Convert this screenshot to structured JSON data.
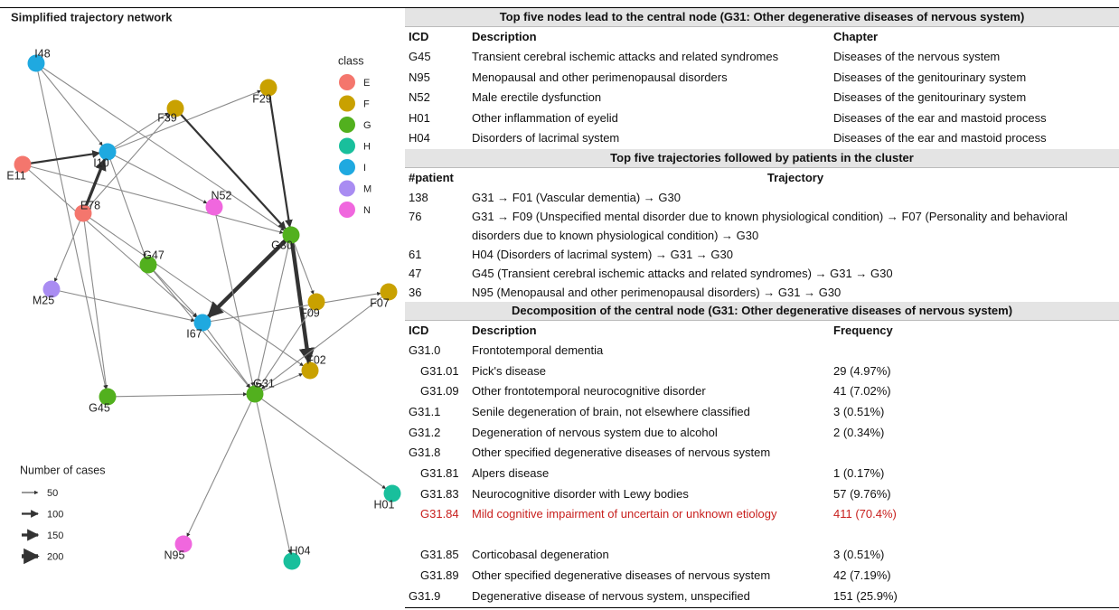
{
  "figure_title": "Simplified trajectory network",
  "network": {
    "legend_title": "class",
    "classes": [
      {
        "name": "E",
        "color": "#f4766d"
      },
      {
        "name": "F",
        "color": "#c9a100"
      },
      {
        "name": "G",
        "color": "#52b01e"
      },
      {
        "name": "H",
        "color": "#19bf9c"
      },
      {
        "name": "I",
        "color": "#1fa9e0"
      },
      {
        "name": "M",
        "color": "#a98cf2"
      },
      {
        "name": "N",
        "color": "#f067de"
      }
    ],
    "nodes": [
      {
        "label": "I48",
        "class": "I"
      },
      {
        "label": "F29",
        "class": "F"
      },
      {
        "label": "F39",
        "class": "F"
      },
      {
        "label": "E11",
        "class": "E"
      },
      {
        "label": "I10",
        "class": "I"
      },
      {
        "label": "E78",
        "class": "E"
      },
      {
        "label": "N52",
        "class": "N"
      },
      {
        "label": "G30",
        "class": "G"
      },
      {
        "label": "G47",
        "class": "G"
      },
      {
        "label": "M25",
        "class": "M"
      },
      {
        "label": "F09",
        "class": "F"
      },
      {
        "label": "F07",
        "class": "F"
      },
      {
        "label": "I67",
        "class": "I"
      },
      {
        "label": "F02",
        "class": "F"
      },
      {
        "label": "G31",
        "class": "G"
      },
      {
        "label": "G45",
        "class": "G"
      },
      {
        "label": "H01",
        "class": "H"
      },
      {
        "label": "N95",
        "class": "N"
      },
      {
        "label": "H04",
        "class": "H"
      }
    ],
    "size_legend": {
      "title": "Number of cases",
      "values": [
        50,
        100,
        150,
        200
      ]
    }
  },
  "tables": [
    {
      "title": "Top five nodes lead to the central node (G31: Other degenerative diseases of nervous system)",
      "columns": [
        "ICD",
        "Description",
        "Chapter"
      ],
      "rows": [
        {
          "cells": [
            "G45",
            "Transient cerebral ischemic attacks and related syndromes",
            "Diseases of the nervous system"
          ]
        },
        {
          "cells": [
            "N95",
            "Menopausal and other perimenopausal disorders",
            "Diseases of the genitourinary system"
          ]
        },
        {
          "cells": [
            "N52",
            "Male erectile dysfunction",
            "Diseases of the genitourinary system"
          ]
        },
        {
          "cells": [
            "H01",
            "Other inflammation of eyelid",
            "Diseases of the ear and mastoid process"
          ]
        },
        {
          "cells": [
            "H04",
            "Disorders of lacrimal system",
            "Diseases of the ear and mastoid process"
          ]
        }
      ]
    },
    {
      "title": "Top five trajectories followed by patients in the cluster",
      "columns": [
        "#patient",
        "Trajectory"
      ],
      "rows": [
        {
          "cells": [
            "138",
            "G31 → F01 (Vascular dementia) → G30"
          ]
        },
        {
          "cells": [
            "76",
            "G31 → F09 (Unspecified mental disorder due to known physiological condition) → F07 (Personality and behavioral disorders due to known physiological condition) → G30"
          ]
        },
        {
          "cells": [
            "61",
            "H04 (Disorders of lacrimal system) → G31 → G30"
          ]
        },
        {
          "cells": [
            "47",
            "G45 (Transient cerebral ischemic attacks and related syndromes) → G31 → G30"
          ]
        },
        {
          "cells": [
            "36",
            "N95 (Menopausal and other perimenopausal disorders) → G31 → G30"
          ]
        }
      ]
    },
    {
      "title": "Decomposition of the central node (G31: Other degenerative diseases of nervous system)",
      "columns": [
        "ICD",
        "Description",
        "Frequency"
      ],
      "rows": [
        {
          "cells": [
            "G31.0",
            "Frontotemporal dementia"
          ]
        },
        {
          "cells": [
            "G31.01",
            "Pick's disease",
            "29 (4.97%)"
          ],
          "level": 1
        },
        {
          "cells": [
            "G31.09",
            "Other frontotemporal neurocognitive disorder",
            "41 (7.02%)"
          ],
          "level": 1
        },
        {
          "cells": [
            "G31.1",
            "Senile degeneration of brain, not elsewhere classified",
            "3 (0.51%)"
          ]
        },
        {
          "cells": [
            "G31.2",
            "Degeneration of nervous system due to alcohol",
            "2 (0.34%)"
          ]
        },
        {
          "cells": [
            "G31.8",
            "Other specified degenerative diseases of nervous system"
          ]
        },
        {
          "cells": [
            "G31.81",
            "Alpers disease",
            "1 (0.17%)"
          ],
          "level": 1
        },
        {
          "cells": [
            "G31.83",
            "Neurocognitive disorder with Lewy bodies",
            "57 (9.76%)"
          ],
          "level": 1
        },
        {
          "cells": [
            "G31.84",
            "Mild cognitive impairment of uncertain or unknown etiology",
            "411 (70.4%)"
          ],
          "level": 1,
          "color": "#c8201e"
        },
        {
          "cells": [
            "G31.85",
            "Corticobasal degeneration",
            "3 (0.51%)"
          ],
          "level": 1
        },
        {
          "cells": [
            "G31.89",
            "Other specified degenerative diseases of nervous system",
            "42 (7.19%)"
          ],
          "level": 1
        },
        {
          "cells": [
            "G31.9",
            "Degenerative disease of nervous system, unspecified",
            "151 (25.9%)"
          ]
        }
      ]
    }
  ]
}
